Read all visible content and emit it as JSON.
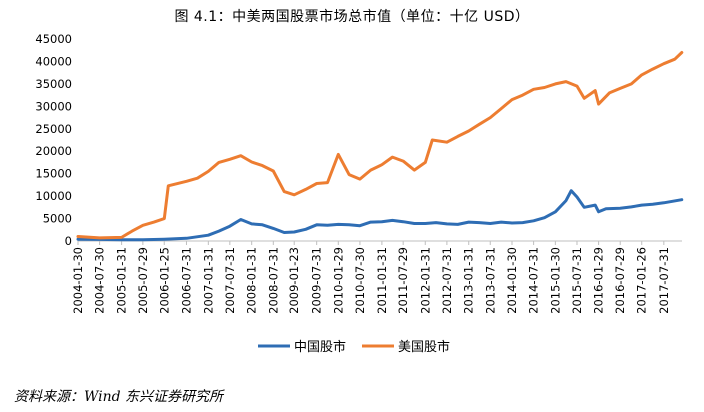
{
  "chart_title": "图 4.1：中美两国股票市场总市值（单位：十亿 USD）",
  "source_note": "资料来源：Wind  东兴证券研究所",
  "colors": {
    "china": "#2E6DB4",
    "us": "#ED7D31",
    "axis": "#bfbfbf"
  },
  "chart_data": {
    "type": "line",
    "title": "图 4.1：中美两国股票市场总市值（单位：十亿 USD）",
    "xlabel": "",
    "ylabel": "",
    "ylim": [
      0,
      45000
    ],
    "yticks": [
      0,
      5000,
      10000,
      15000,
      20000,
      25000,
      30000,
      35000,
      40000,
      45000
    ],
    "xlim": [
      "2004-01-30",
      "2017-12-31"
    ],
    "xticks": [
      "2004-01-30",
      "2004-07-30",
      "2005-01-31",
      "2005-07-29",
      "2006-01-25",
      "2006-07-31",
      "2007-01-31",
      "2007-07-31",
      "2008-01-31",
      "2008-07-31",
      "2009-01-23",
      "2009-07-31",
      "2010-01-29",
      "2010-07-30",
      "2011-01-31",
      "2011-07-29",
      "2012-01-31",
      "2012-07-31",
      "2013-01-31",
      "2013-07-31",
      "2014-01-30",
      "2014-07-31",
      "2015-01-30",
      "2015-07-31",
      "2016-01-29",
      "2016-07-29",
      "2017-01-26",
      "2017-07-31"
    ],
    "legend_position": "bottom",
    "grid": false,
    "series": [
      {
        "name": "中国股市",
        "color": "#2E6DB4",
        "points": [
          [
            "2004-01-30",
            400
          ],
          [
            "2004-07-30",
            350
          ],
          [
            "2005-01-31",
            300
          ],
          [
            "2005-07-29",
            300
          ],
          [
            "2006-01-25",
            400
          ],
          [
            "2006-07-31",
            600
          ],
          [
            "2007-01-31",
            1300
          ],
          [
            "2007-04-30",
            2200
          ],
          [
            "2007-07-31",
            3300
          ],
          [
            "2007-10-31",
            4800
          ],
          [
            "2008-01-31",
            3800
          ],
          [
            "2008-04-30",
            3600
          ],
          [
            "2008-07-31",
            2800
          ],
          [
            "2008-10-31",
            1900
          ],
          [
            "2009-01-23",
            2000
          ],
          [
            "2009-04-30",
            2600
          ],
          [
            "2009-07-31",
            3600
          ],
          [
            "2009-10-30",
            3500
          ],
          [
            "2010-01-29",
            3700
          ],
          [
            "2010-04-30",
            3600
          ],
          [
            "2010-07-30",
            3400
          ],
          [
            "2010-10-29",
            4200
          ],
          [
            "2011-01-31",
            4300
          ],
          [
            "2011-04-29",
            4600
          ],
          [
            "2011-07-29",
            4300
          ],
          [
            "2011-10-31",
            3900
          ],
          [
            "2012-01-31",
            3900
          ],
          [
            "2012-04-30",
            4100
          ],
          [
            "2012-07-31",
            3800
          ],
          [
            "2012-10-31",
            3700
          ],
          [
            "2013-01-31",
            4200
          ],
          [
            "2013-04-30",
            4100
          ],
          [
            "2013-07-31",
            3900
          ],
          [
            "2013-10-31",
            4200
          ],
          [
            "2014-01-30",
            4000
          ],
          [
            "2014-04-30",
            4100
          ],
          [
            "2014-07-31",
            4500
          ],
          [
            "2014-10-31",
            5200
          ],
          [
            "2015-01-30",
            6500
          ],
          [
            "2015-04-30",
            9000
          ],
          [
            "2015-06-12",
            11200
          ],
          [
            "2015-07-31",
            9800
          ],
          [
            "2015-09-30",
            7500
          ],
          [
            "2015-12-31",
            8000
          ],
          [
            "2016-01-29",
            6500
          ],
          [
            "2016-03-31",
            7200
          ],
          [
            "2016-07-29",
            7300
          ],
          [
            "2016-10-31",
            7600
          ],
          [
            "2017-01-26",
            8000
          ],
          [
            "2017-04-28",
            8200
          ],
          [
            "2017-07-31",
            8500
          ],
          [
            "2017-12-29",
            9200
          ]
        ]
      },
      {
        "name": "美国股市",
        "color": "#ED7D31",
        "points": [
          [
            "2004-01-30",
            1000
          ],
          [
            "2004-07-30",
            700
          ],
          [
            "2005-01-31",
            800
          ],
          [
            "2005-04-29",
            2200
          ],
          [
            "2005-07-29",
            3500
          ],
          [
            "2005-10-31",
            4200
          ],
          [
            "2006-01-25",
            5000
          ],
          [
            "2006-02-28",
            12300
          ],
          [
            "2006-07-31",
            13300
          ],
          [
            "2006-10-31",
            14000
          ],
          [
            "2007-01-31",
            15500
          ],
          [
            "2007-04-30",
            17500
          ],
          [
            "2007-07-31",
            18200
          ],
          [
            "2007-10-31",
            19000
          ],
          [
            "2008-01-31",
            17600
          ],
          [
            "2008-04-30",
            16800
          ],
          [
            "2008-07-31",
            15600
          ],
          [
            "2008-10-31",
            11000
          ],
          [
            "2009-01-23",
            10300
          ],
          [
            "2009-04-30",
            11500
          ],
          [
            "2009-07-31",
            12800
          ],
          [
            "2009-10-30",
            13000
          ],
          [
            "2010-01-29",
            19300
          ],
          [
            "2010-04-30",
            14800
          ],
          [
            "2010-07-30",
            13800
          ],
          [
            "2010-10-29",
            15800
          ],
          [
            "2011-01-31",
            17000
          ],
          [
            "2011-04-29",
            18700
          ],
          [
            "2011-07-29",
            17800
          ],
          [
            "2011-10-31",
            15800
          ],
          [
            "2012-01-31",
            17500
          ],
          [
            "2012-03-30",
            22500
          ],
          [
            "2012-07-31",
            22000
          ],
          [
            "2012-10-31",
            23300
          ],
          [
            "2013-01-31",
            24500
          ],
          [
            "2013-04-30",
            26000
          ],
          [
            "2013-07-31",
            27500
          ],
          [
            "2013-10-31",
            29500
          ],
          [
            "2014-01-30",
            31500
          ],
          [
            "2014-04-30",
            32500
          ],
          [
            "2014-07-31",
            33800
          ],
          [
            "2014-10-31",
            34200
          ],
          [
            "2015-01-30",
            35000
          ],
          [
            "2015-04-30",
            35500
          ],
          [
            "2015-07-31",
            34500
          ],
          [
            "2015-09-30",
            31800
          ],
          [
            "2015-12-31",
            33500
          ],
          [
            "2016-01-29",
            30500
          ],
          [
            "2016-04-29",
            33000
          ],
          [
            "2016-07-29",
            34000
          ],
          [
            "2016-10-31",
            35000
          ],
          [
            "2017-01-26",
            37000
          ],
          [
            "2017-04-28",
            38300
          ],
          [
            "2017-07-31",
            39500
          ],
          [
            "2017-10-31",
            40500
          ],
          [
            "2017-12-29",
            42000
          ]
        ]
      }
    ]
  }
}
